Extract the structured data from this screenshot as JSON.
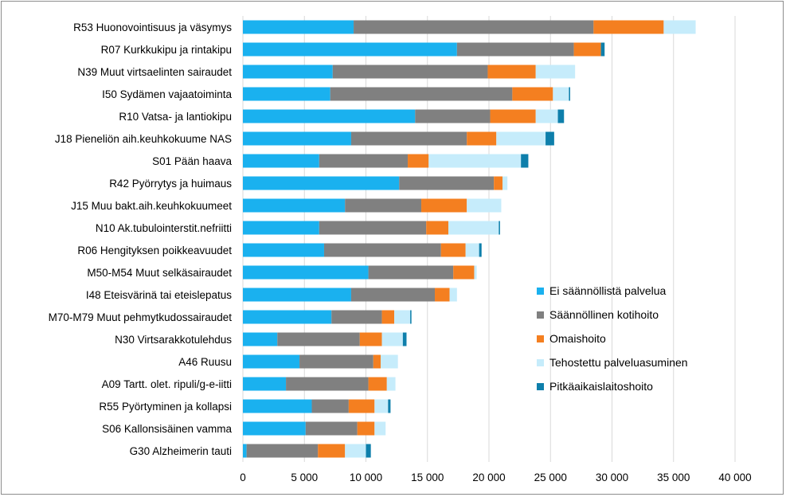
{
  "chart_data": {
    "type": "bar",
    "orientation": "horizontal",
    "stacked": true,
    "title": "",
    "xlabel": "",
    "ylabel": "",
    "xlim": [
      0,
      40000
    ],
    "xticks": [
      0,
      5000,
      10000,
      15000,
      20000,
      25000,
      30000,
      35000,
      40000
    ],
    "xtick_labels": [
      "0",
      "5 000",
      "10 000",
      "15 000",
      "20 000",
      "25 000",
      "30 000",
      "35 000",
      "40 000"
    ],
    "grid": true,
    "legend_position": "right",
    "categories": [
      "R53 Huonovointisuus ja väsymys",
      "R07 Kurkkukipu ja rintakipu",
      "N39 Muut virtsaelinten sairaudet",
      "I50 Sydämen vajaatoiminta",
      "R10 Vatsa- ja lantiokipu",
      "J18 Pieneliön aih.keuhkokuume NAS",
      "S01 Pään haava",
      "R42 Pyörrytys ja huimaus",
      "J15 Muu bakt.aih.keuhkokuumeet",
      "N10 Ak.tubulointerstit.nefriitti",
      "R06 Hengityksen poikkeavuudet",
      "M50-M54 Muut selkäsairaudet",
      "I48 Eteisvärinä tai eteislepatus",
      "M70-M79 Muut pehmytkudossairaudet",
      "N30 Virtsarakkotulehdus",
      "A46 Ruusu",
      "A09 Tartt. olet. ripuli/g-e-iitti",
      "R55 Pyörtyminen ja kollapsi",
      "S06 Kallonsisäinen vamma",
      "G30 Alzheimerin tauti"
    ],
    "series": [
      {
        "name": "Ei säännöllistä palvelua",
        "color": "#1ab1ef",
        "values": [
          9000,
          17400,
          7300,
          7100,
          14000,
          8800,
          6200,
          12700,
          8300,
          6200,
          6600,
          10200,
          8800,
          7200,
          2800,
          4600,
          3500,
          5600,
          5100,
          300
        ]
      },
      {
        "name": "Säännöllinen kotihoito",
        "color": "#808080",
        "values": [
          19500,
          9500,
          12600,
          14800,
          6100,
          9400,
          7200,
          7700,
          6200,
          8700,
          9500,
          6900,
          6800,
          4100,
          6700,
          6000,
          6700,
          3000,
          4200,
          5800
        ]
      },
      {
        "name": "Omaishoito",
        "color": "#f47f20",
        "values": [
          5700,
          2200,
          3900,
          3300,
          3700,
          2400,
          1700,
          700,
          3700,
          1800,
          2000,
          1700,
          1200,
          1000,
          1800,
          600,
          1500,
          2100,
          1400,
          2200
        ]
      },
      {
        "name": "Tehostettu palveluasuminen",
        "color": "#c6ecfb",
        "values": [
          2600,
          0,
          3200,
          1300,
          1800,
          4000,
          7500,
          400,
          2800,
          4100,
          1100,
          200,
          600,
          1300,
          1700,
          1400,
          700,
          1100,
          900,
          1700
        ]
      },
      {
        "name": "Pitkäaikaislaitoshoito",
        "color": "#0e7fab",
        "values": [
          0,
          300,
          0,
          100,
          500,
          700,
          600,
          0,
          0,
          100,
          200,
          0,
          0,
          100,
          300,
          0,
          0,
          200,
          0,
          400
        ]
      }
    ]
  }
}
